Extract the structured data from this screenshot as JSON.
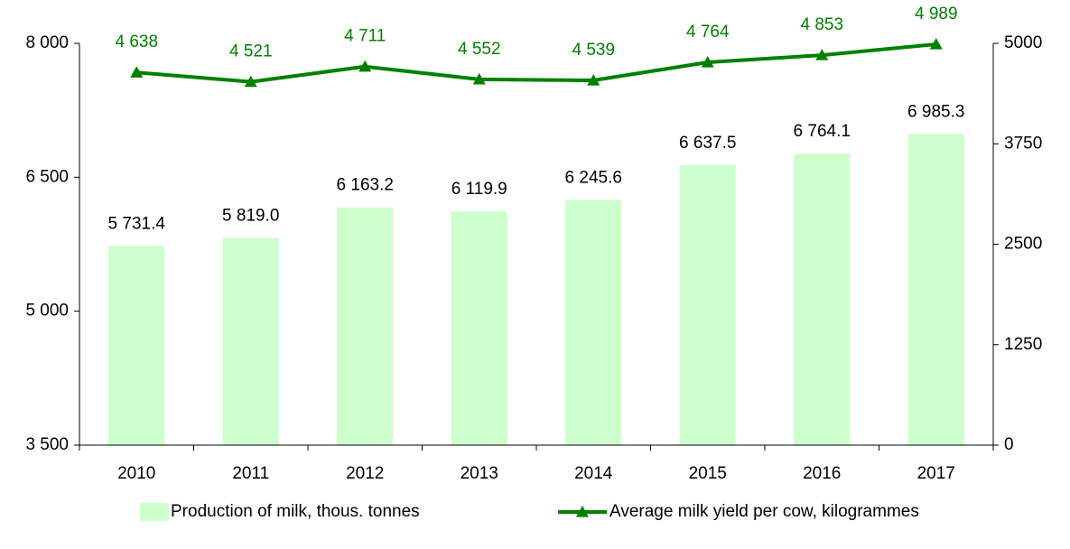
{
  "chart_data": {
    "type": "bar_line",
    "categories": [
      "2010",
      "2011",
      "2012",
      "2013",
      "2014",
      "2015",
      "2016",
      "2017"
    ],
    "series": [
      {
        "name": "Production of milk, thous. tonnes",
        "type": "bar",
        "color": "#ccffcc",
        "values": [
          5731.4,
          5819.0,
          6163.2,
          6119.9,
          6245.6,
          6637.5,
          6764.1,
          6985.3
        ],
        "value_labels": [
          "5 731.4",
          "5 819.0",
          "6 163.2",
          "6 119.9",
          "6 245.6",
          "6 637.5",
          "6 764.1",
          "6 985.3"
        ]
      },
      {
        "name": "Average milk yield per cow, kilogrammes",
        "type": "line",
        "axis": "y2",
        "color": "#008000",
        "values": [
          4638,
          4521,
          4711,
          4552,
          4539,
          4764,
          4853,
          4989
        ],
        "value_labels": [
          "4 638",
          "4 521",
          "4 711",
          "4 552",
          "4 539",
          "4 764",
          "4 853",
          "4 989"
        ]
      }
    ],
    "ylim": [
      3500,
      8000
    ],
    "yticks": [
      {
        "value": 3500,
        "label": "3 500"
      },
      {
        "value": 5000,
        "label": "5 000"
      },
      {
        "value": 6500,
        "label": "6 500"
      },
      {
        "value": 8000,
        "label": "8 000"
      }
    ],
    "y2lim": [
      0,
      5000
    ],
    "y2ticks": [
      0,
      1250,
      2500,
      3750,
      5000
    ],
    "legend": "bottom"
  }
}
